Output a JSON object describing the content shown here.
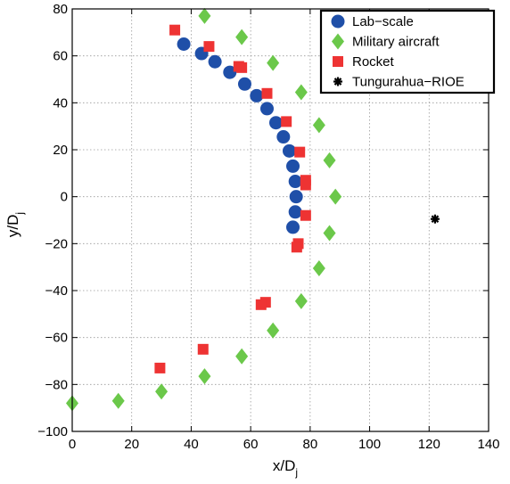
{
  "chart_data": {
    "type": "scatter",
    "title": "",
    "xlabel": "x/D",
    "xlabel_sub": "j",
    "ylabel": "y/D",
    "ylabel_sub": "j",
    "xlim": [
      0,
      140
    ],
    "ylim": [
      -100,
      80
    ],
    "xticks": [
      0,
      20,
      40,
      60,
      80,
      100,
      120,
      140
    ],
    "yticks": [
      -100,
      -80,
      -60,
      -40,
      -20,
      0,
      20,
      40,
      60,
      80
    ],
    "grid": true,
    "legend_position": "top-right",
    "series": [
      {
        "name": "Lab−scale",
        "marker": "circle",
        "color": "#1f4fa8",
        "points": [
          [
            37.5,
            65
          ],
          [
            43.5,
            61
          ],
          [
            48,
            57.5
          ],
          [
            53,
            53
          ],
          [
            58,
            48
          ],
          [
            62,
            43
          ],
          [
            65.5,
            37.5
          ],
          [
            68.5,
            31.5
          ],
          [
            71,
            25.5
          ],
          [
            73,
            19.5
          ],
          [
            74.2,
            13
          ],
          [
            75,
            6.5
          ],
          [
            75.3,
            0
          ],
          [
            75,
            -6.5
          ],
          [
            74.2,
            -13
          ]
        ]
      },
      {
        "name": "Military aircraft",
        "marker": "diamond",
        "color": "#6bc84a",
        "points": [
          [
            44.5,
            77
          ],
          [
            57,
            68
          ],
          [
            67.5,
            57
          ],
          [
            77,
            44.5
          ],
          [
            83,
            30.5
          ],
          [
            86.5,
            15.5
          ],
          [
            88.5,
            0
          ],
          [
            86.5,
            -15.5
          ],
          [
            83,
            -30.5
          ],
          [
            77,
            -44.5
          ],
          [
            67.5,
            -57
          ],
          [
            57,
            -68
          ],
          [
            44.5,
            -76.5
          ],
          [
            30,
            -83
          ],
          [
            15.5,
            -87
          ],
          [
            0,
            -88
          ]
        ]
      },
      {
        "name": "Rocket",
        "marker": "square",
        "color": "#ee3333",
        "points": [
          [
            34.5,
            71
          ],
          [
            46,
            64
          ],
          [
            56,
            55.5
          ],
          [
            57,
            55
          ],
          [
            65.5,
            44
          ],
          [
            72,
            32
          ],
          [
            76.5,
            19
          ],
          [
            78.5,
            7
          ],
          [
            78.5,
            5
          ],
          [
            78.5,
            -8
          ],
          [
            76,
            -20
          ],
          [
            75.5,
            -21.5
          ],
          [
            65,
            -45
          ],
          [
            63.5,
            -46
          ],
          [
            44,
            -65
          ],
          [
            29.5,
            -73
          ]
        ]
      },
      {
        "name": "Tungurahua−RIOE",
        "marker": "asterisk",
        "color": "#000000",
        "points": [
          [
            122,
            -9.5
          ]
        ]
      }
    ]
  }
}
